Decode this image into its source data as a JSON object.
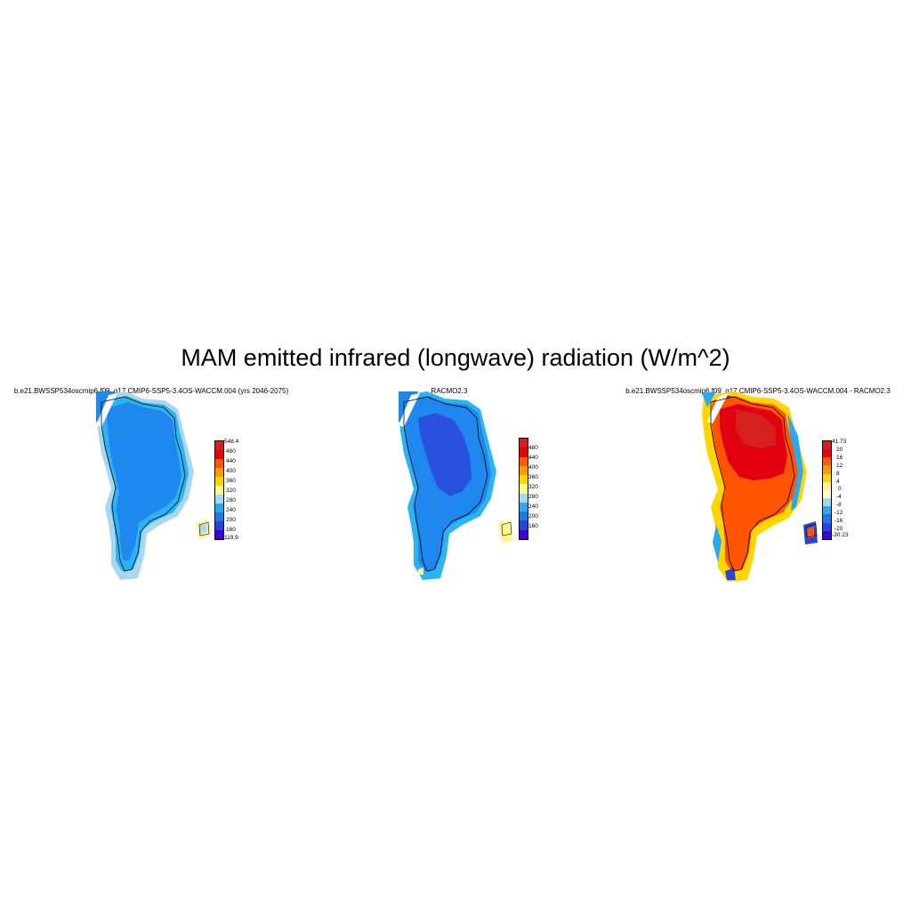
{
  "figure": {
    "title": "MAM emitted infrared (longwave) radiation (W/m^2)"
  },
  "panels": [
    {
      "id": "model",
      "title": "b.e21.BWSSP534oscmip6.f09_g17.CMIP6-SSP5-3.4OS-WACCM.004 (yrs 2046-2075)",
      "colorbar": {
        "labels": [
          "548.4",
          "480",
          "440",
          "400",
          "360",
          "320",
          "280",
          "240",
          "200",
          "160",
          "119.9"
        ],
        "colors": [
          "#d62020",
          "#e8000b",
          "#ff5a00",
          "#ff9a00",
          "#ffd600",
          "#fff68f",
          "#a6d8f0",
          "#2aa8f0",
          "#1e78e8",
          "#2a44d8",
          "#3a00e0"
        ]
      },
      "map_fill": {
        "interior": "#1e88ee",
        "margin": "#2ab4f2",
        "edge": "#a8d8f0"
      }
    },
    {
      "id": "obs",
      "title": "RACMO2.3",
      "colorbar": {
        "labels": [
          "480",
          "440",
          "400",
          "360",
          "320",
          "280",
          "240",
          "200",
          "160"
        ],
        "colors": [
          "#d62020",
          "#e8000b",
          "#ff5a00",
          "#ff9a00",
          "#ffd600",
          "#fff68f",
          "#a6d8f0",
          "#2aa8f0",
          "#1e78e8",
          "#2a44d8",
          "#3a00e0"
        ]
      },
      "map_fill": {
        "interior": "#2a50e0",
        "margin": "#1e88ee",
        "edge": "#2ab4f2"
      }
    },
    {
      "id": "diff",
      "title": "b.e21.BWSSP534oscmip6.f09_g17.CMIP6-SSP5-3.4OS-WACCM.004 - RACMO2.3",
      "colorbar": {
        "labels": [
          "41.73",
          "20",
          "16",
          "12",
          "8",
          "4",
          "0",
          "-4",
          "-8",
          "-12",
          "-16",
          "-20",
          "-30.23"
        ],
        "colors": [
          "#d62020",
          "#e8000b",
          "#ff5a00",
          "#ff9a00",
          "#ffd600",
          "#fff68f",
          "#fffcd0",
          "#a6d8f0",
          "#2aa8f0",
          "#1e78e8",
          "#2a44d8",
          "#3a00e0"
        ]
      },
      "map_fill": {
        "interior": "#ff5500",
        "north": "#e20010",
        "edge": "#ffd600"
      }
    }
  ]
}
